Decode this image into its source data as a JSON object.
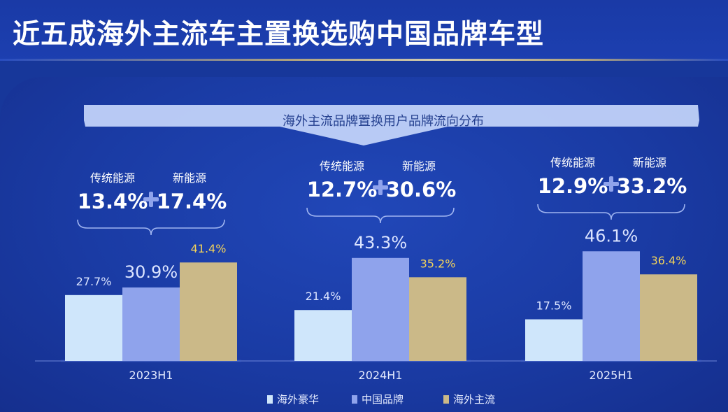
{
  "header": {
    "title": "近五成海外主流车主置换选购中国品牌车型"
  },
  "banner": {
    "text": "海外主流品牌置换用户品牌流向分布"
  },
  "colors": {
    "luxury": "#cfe6fb",
    "china": "#8fa3ec",
    "mainstream": "#cbb988",
    "mainstream_label": "#f3d35a",
    "label_light": "#dbe4ff"
  },
  "groups": [
    {
      "period": "2023H1",
      "traditional_label": "传统能源",
      "nev_label": "新能源",
      "traditional_pct": "13.4%",
      "nev_pct": "17.4%"
    },
    {
      "period": "2024H1",
      "traditional_label": "传统能源",
      "nev_label": "新能源",
      "traditional_pct": "12.7%",
      "nev_pct": "30.6%"
    },
    {
      "period": "2025H1",
      "traditional_label": "传统能源",
      "nev_label": "新能源",
      "traditional_pct": "12.9%",
      "nev_pct": "33.2%"
    }
  ],
  "chart_data": {
    "type": "bar",
    "title": "海外主流品牌置换用户品牌流向分布",
    "categories": [
      "2023H1",
      "2024H1",
      "2025H1"
    ],
    "series": [
      {
        "name": "海外豪华",
        "values": [
          27.7,
          21.4,
          17.5
        ],
        "labels": [
          "27.7%",
          "21.4%",
          "17.5%"
        ]
      },
      {
        "name": "中国品牌",
        "values": [
          30.9,
          43.3,
          46.1
        ],
        "labels": [
          "30.9%",
          "43.3%",
          "46.1%"
        ]
      },
      {
        "name": "海外主流",
        "values": [
          41.4,
          35.2,
          36.4
        ],
        "labels": [
          "41.4%",
          "35.2%",
          "36.4%"
        ]
      }
    ],
    "legend": "bottom",
    "grid": false
  }
}
